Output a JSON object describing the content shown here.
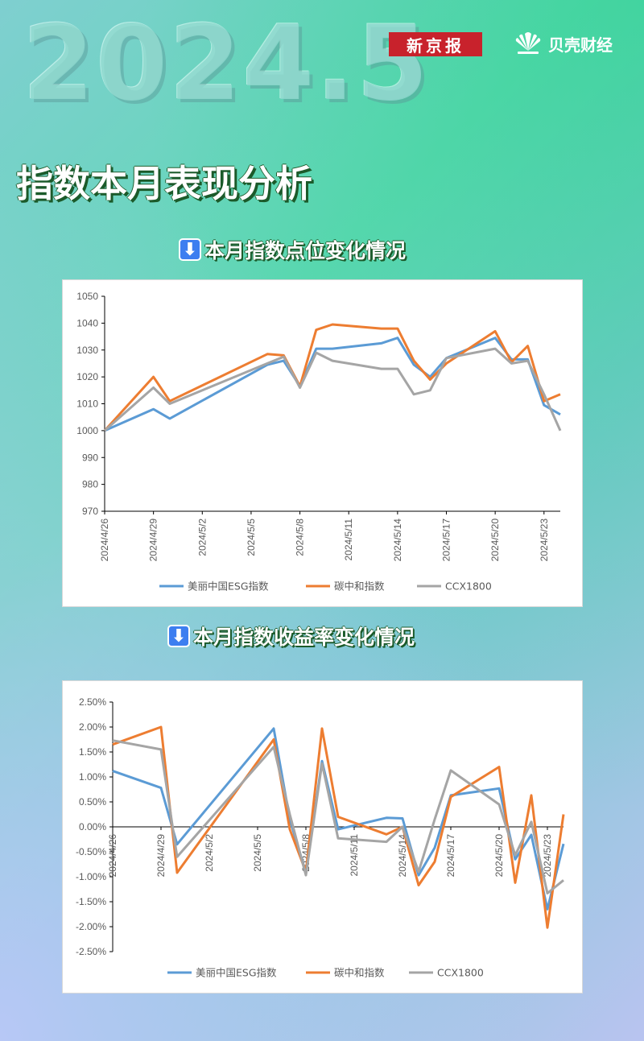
{
  "header": {
    "year": "2024.5",
    "brand_1": "新京报",
    "brand_2": "贝壳财经",
    "section_title": "指数本月表现分析"
  },
  "colors": {
    "esg": "#5b9bd5",
    "carbon": "#ed7d31",
    "ccx": "#a5a5a5"
  },
  "icons": [
    "down-arrow-icon",
    "shell-logo-icon"
  ],
  "chart_data": [
    {
      "type": "line",
      "title": "本月指数点位变化情况",
      "xlabel": "",
      "ylabel": "",
      "x": [
        "2024/4/26",
        "2024/4/29",
        "2024/4/30",
        "2024/5/6",
        "2024/5/7",
        "2024/5/8",
        "2024/5/9",
        "2024/5/10",
        "2024/5/13",
        "2024/5/14",
        "2024/5/15",
        "2024/5/16",
        "2024/5/17",
        "2024/5/20",
        "2024/5/21",
        "2024/5/22",
        "2024/5/23",
        "2024/5/24"
      ],
      "x_positions": [
        0,
        3,
        4,
        10,
        11,
        12,
        13,
        14,
        17,
        18,
        19,
        20,
        21,
        24,
        25,
        26,
        27,
        28
      ],
      "tick_labels": [
        "2024/4/26",
        "2024/4/29",
        "2024/5/2",
        "2024/5/5",
        "2024/5/8",
        "2024/5/11",
        "2024/5/14",
        "2024/5/17",
        "2024/5/20",
        "2024/5/23"
      ],
      "tick_positions": [
        0,
        3,
        6,
        9,
        12,
        15,
        18,
        21,
        24,
        27
      ],
      "ylim": [
        970,
        1050
      ],
      "yticks": [
        "1050",
        "1040",
        "1030",
        "1020",
        "1010",
        "1000",
        "990",
        "980",
        "970"
      ],
      "series": [
        {
          "name": "美丽中国ESG指数",
          "color_key": "esg",
          "values": [
            1000,
            1008,
            1004.5,
            1024.5,
            1026,
            1016.5,
            1030.5,
            1030.5,
            1032.5,
            1034.5,
            1024.5,
            1020,
            1027,
            1034.5,
            1026.5,
            1026.5,
            1009.5,
            1006
          ]
        },
        {
          "name": "碳中和指数",
          "color_key": "carbon",
          "values": [
            1000,
            1020,
            1011,
            1028.5,
            1028,
            1016.5,
            1037.5,
            1039.5,
            1038,
            1038,
            1026,
            1019,
            1025,
            1037,
            1025.5,
            1031.5,
            1011,
            1013.5
          ]
        },
        {
          "name": "CCX1800",
          "color_key": "ccx",
          "values": [
            1000,
            1016,
            1010,
            1025,
            1027.5,
            1016,
            1029,
            1026,
            1023,
            1023,
            1013.5,
            1015,
            1027,
            1030.5,
            1025,
            1026,
            1013.5,
            1000
          ]
        }
      ]
    },
    {
      "type": "line",
      "title": "本月指数收益率变化情况",
      "xlabel": "",
      "ylabel": "",
      "x": [
        "2024/4/26",
        "2024/4/29",
        "2024/4/30",
        "2024/5/6",
        "2024/5/7",
        "2024/5/8",
        "2024/5/9",
        "2024/5/10",
        "2024/5/13",
        "2024/5/14",
        "2024/5/15",
        "2024/5/16",
        "2024/5/17",
        "2024/5/20",
        "2024/5/21",
        "2024/5/22",
        "2024/5/23",
        "2024/5/24"
      ],
      "x_positions": [
        0,
        3,
        4,
        10,
        11,
        12,
        13,
        14,
        17,
        18,
        19,
        20,
        21,
        24,
        25,
        26,
        27,
        28
      ],
      "tick_labels": [
        "2024/4/26",
        "2024/4/29",
        "2024/5/2",
        "2024/5/5",
        "2024/5/8",
        "2024/5/11",
        "2024/5/14",
        "2024/5/17",
        "2024/5/20",
        "2024/5/23"
      ],
      "tick_positions": [
        0,
        3,
        6,
        9,
        12,
        15,
        18,
        21,
        24,
        27
      ],
      "ylim": [
        -2.5,
        2.5
      ],
      "yticks": [
        "2.50%",
        "2.00%",
        "1.50%",
        "1.00%",
        "0.50%",
        "0.00%",
        "-0.50%",
        "-1.00%",
        "-1.50%",
        "-2.00%",
        "-2.50%"
      ],
      "series": [
        {
          "name": "美丽中国ESG指数",
          "color_key": "esg",
          "values": [
            1.12,
            0.78,
            -0.35,
            1.97,
            0.15,
            -0.92,
            1.32,
            -0.05,
            0.18,
            0.17,
            -0.97,
            -0.42,
            0.63,
            0.77,
            -0.65,
            -0.16,
            -1.65,
            -0.34
          ]
        },
        {
          "name": "碳中和指数",
          "color_key": "carbon",
          "values": [
            1.65,
            2.0,
            -0.92,
            1.75,
            -0.05,
            -0.9,
            1.97,
            0.2,
            -0.15,
            0.0,
            -1.17,
            -0.7,
            0.6,
            1.2,
            -1.12,
            0.63,
            -2.02,
            0.25
          ]
        },
        {
          "name": "CCX1800",
          "color_key": "ccx",
          "values": [
            1.73,
            1.55,
            -0.6,
            1.6,
            0.25,
            -0.97,
            1.27,
            -0.23,
            -0.3,
            0.0,
            -0.9,
            0.15,
            1.13,
            0.45,
            -0.57,
            0.1,
            -1.33,
            -1.07
          ]
        }
      ]
    }
  ]
}
